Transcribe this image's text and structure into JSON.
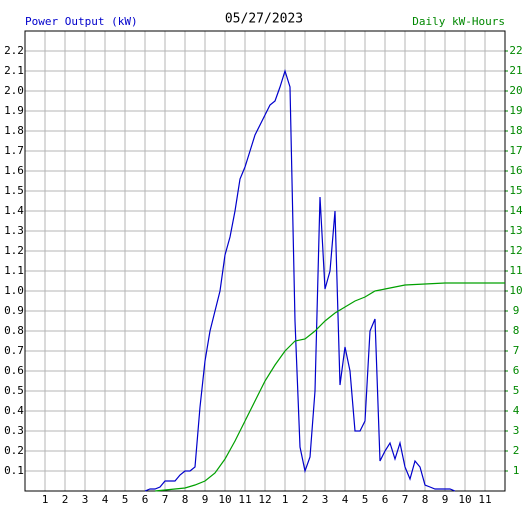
{
  "chart_data": {
    "type": "line",
    "title": "05/27/2023",
    "ylabel": "Power Output (kW)",
    "y2label": "Daily kW-Hours",
    "ylabel_color": "#0000cc",
    "y2label_color": "#008800",
    "grid": true,
    "xlim": [
      0,
      24
    ],
    "xticks": [
      1,
      2,
      3,
      4,
      5,
      6,
      7,
      8,
      9,
      10,
      11,
      12,
      {
        "value": 13,
        "label": "1"
      },
      {
        "value": 14,
        "label": "2"
      },
      {
        "value": 15,
        "label": "3"
      },
      {
        "value": 16,
        "label": "4"
      },
      {
        "value": 17,
        "label": "5"
      },
      {
        "value": 18,
        "label": "6"
      },
      {
        "value": 19,
        "label": "7"
      },
      {
        "value": 20,
        "label": "8"
      },
      {
        "value": 21,
        "label": "9"
      },
      {
        "value": 22,
        "label": "10"
      },
      {
        "value": 23,
        "label": "11"
      }
    ],
    "ylim": [
      0,
      2.3
    ],
    "yticks": [
      0.1,
      0.2,
      0.3,
      0.4,
      0.5,
      0.6,
      0.7,
      0.8,
      0.9,
      {
        "value": 1,
        "label": "1.0"
      },
      1.1,
      1.2,
      1.3,
      1.4,
      1.5,
      1.6,
      1.7,
      1.8,
      1.9,
      {
        "value": 2,
        "label": "2.0"
      },
      2.1,
      2.2
    ],
    "y2lim": [
      0,
      23
    ],
    "y2ticks": [
      1,
      2,
      3,
      4,
      5,
      6,
      7,
      8,
      9,
      10,
      11,
      12,
      13,
      14,
      15,
      16,
      17,
      18,
      19,
      20,
      21,
      22
    ],
    "series": [
      {
        "color": "#0000cc",
        "x": [
          6,
          6.25,
          6.5,
          6.75,
          7,
          7.25,
          7.5,
          7.75,
          8,
          8.25,
          8.5,
          8.75,
          9,
          9.25,
          9.5,
          9.75,
          10,
          10.25,
          10.5,
          10.75,
          11,
          11.25,
          11.5,
          11.75,
          12,
          12.25,
          12.5,
          12.75,
          13,
          13.25,
          13.5,
          13.75,
          14,
          14.25,
          14.5,
          14.75,
          15,
          15.25,
          15.5,
          15.75,
          16,
          16.25,
          16.5,
          16.75,
          17,
          17.25,
          17.5,
          17.75,
          18,
          18.25,
          18.5,
          18.75,
          19,
          19.25,
          19.5,
          19.75,
          20,
          20.25,
          20.5,
          20.75,
          21,
          21.25,
          21.5
        ],
        "values": [
          0,
          0.01,
          0.01,
          0.02,
          0.05,
          0.05,
          0.05,
          0.08,
          0.1,
          0.1,
          0.12,
          0.42,
          0.65,
          0.8,
          0.9,
          1.0,
          1.18,
          1.27,
          1.4,
          1.56,
          1.62,
          1.7,
          1.78,
          1.83,
          1.88,
          1.93,
          1.95,
          2.02,
          2.1,
          2.02,
          0.85,
          0.22,
          0.1,
          0.17,
          0.5,
          1.47,
          1.01,
          1.1,
          1.4,
          0.53,
          0.72,
          0.6,
          0.3,
          0.3,
          0.35,
          0.8,
          0.86,
          0.15,
          0.2,
          0.24,
          0.16,
          0.24,
          0.12,
          0.06,
          0.15,
          0.12,
          0.03,
          0.02,
          0.01,
          0.01,
          0.01,
          0.01,
          0
        ]
      },
      {
        "color": "#00a000",
        "axis": "y2",
        "x": [
          6.5,
          7,
          7.5,
          8,
          8.5,
          9,
          9.5,
          10,
          10.5,
          11,
          11.5,
          12,
          12.5,
          13,
          13.5,
          14,
          14.5,
          15,
          15.5,
          16,
          16.5,
          17,
          17.5,
          18,
          18.5,
          19,
          20,
          21,
          24
        ],
        "values": [
          0,
          0.05,
          0.1,
          0.15,
          0.3,
          0.5,
          0.9,
          1.6,
          2.5,
          3.5,
          4.5,
          5.5,
          6.3,
          7.0,
          7.5,
          7.6,
          8.0,
          8.5,
          8.9,
          9.2,
          9.5,
          9.7,
          10.0,
          10.1,
          10.2,
          10.3,
          10.35,
          10.4,
          10.4
        ]
      }
    ]
  }
}
